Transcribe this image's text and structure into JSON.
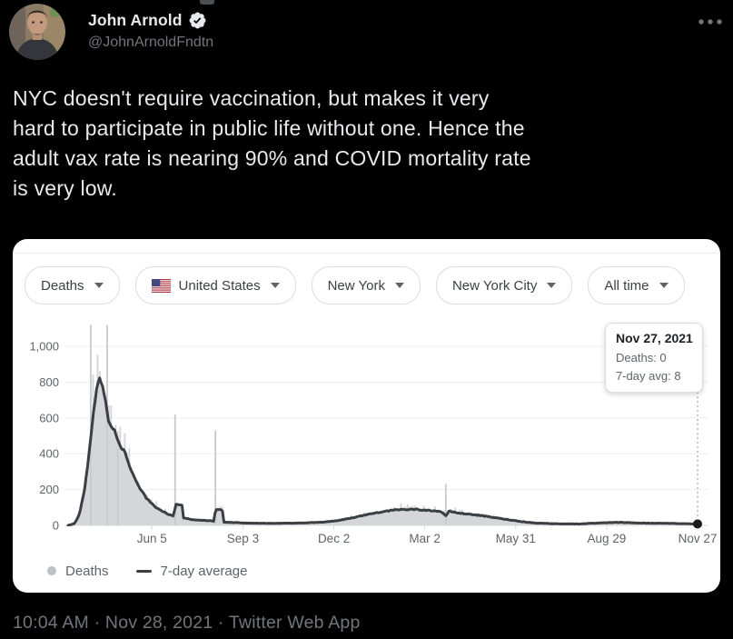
{
  "tweet": {
    "author_name": "John Arnold",
    "handle": "@JohnArnoldFndtn",
    "verified": true,
    "text_lines": [
      "NYC doesn't require vaccination, but makes it very",
      "hard to participate in public life without one. Hence the",
      "adult vax rate is nearing 90% and COVID mortality rate",
      "is very low."
    ],
    "timestamp_line": "10:04 AM · Nov 28, 2021 · Twitter Web App"
  },
  "card": {
    "filters": [
      {
        "label": "Deaths",
        "flag": false
      },
      {
        "label": "United States",
        "flag": true
      },
      {
        "label": "New York",
        "flag": false
      },
      {
        "label": "New York City",
        "flag": false
      },
      {
        "label": "All time",
        "flag": false
      }
    ],
    "tooltip": {
      "title": "Nov 27, 2021",
      "lines": [
        "Deaths: 0",
        "7-day avg: 8"
      ]
    },
    "legend": [
      {
        "label": "Deaths",
        "marker": "dot"
      },
      {
        "label": "7-day average",
        "marker": "line"
      }
    ]
  },
  "chart_data": {
    "type": "bar+line",
    "title": "",
    "xlabel": "",
    "ylabel": "",
    "x_range_dates": [
      "Mar 14, 2020",
      "Nov 27, 2021"
    ],
    "ylim": [
      0,
      1120
    ],
    "grid": true,
    "legend_position": "bottom-left",
    "y_ticks": [
      {
        "v": 0,
        "label": "0"
      },
      {
        "v": 200,
        "label": "200"
      },
      {
        "v": 400,
        "label": "400"
      },
      {
        "v": 600,
        "label": "600"
      },
      {
        "v": 800,
        "label": "800"
      },
      {
        "v": 1000,
        "label": "1,000"
      }
    ],
    "x_ticks": [
      {
        "t": 0.1332,
        "label": "Jun 5"
      },
      {
        "t": 0.2777,
        "label": "Sep 3"
      },
      {
        "t": 0.4222,
        "label": "Dec 2"
      },
      {
        "t": 0.5666,
        "label": "Mar 2"
      },
      {
        "t": 0.7111,
        "label": "May 31"
      },
      {
        "t": 0.8555,
        "label": "Aug 29"
      },
      {
        "t": 1.0,
        "label": "Nov 27"
      }
    ],
    "series": [
      {
        "name": "Deaths",
        "type": "bar",
        "color": "#d4d6d9",
        "envelope_follows": "7-day average",
        "spikes": [
          {
            "t": 0.036,
            "value": 1200
          },
          {
            "t": 0.062,
            "value": 1150
          },
          {
            "t": 0.079,
            "value": 430
          },
          {
            "t": 0.17,
            "value": 620
          },
          {
            "t": 0.234,
            "value": 530
          },
          {
            "t": 0.6,
            "value": 230
          }
        ]
      },
      {
        "name": "7-day average",
        "type": "line",
        "color": "#3a3f44",
        "points": [
          [
            0.0,
            0
          ],
          [
            0.01,
            10
          ],
          [
            0.018,
            60
          ],
          [
            0.026,
            200
          ],
          [
            0.034,
            420
          ],
          [
            0.04,
            620
          ],
          [
            0.046,
            780
          ],
          [
            0.05,
            820
          ],
          [
            0.055,
            780
          ],
          [
            0.06,
            680
          ],
          [
            0.064,
            590
          ],
          [
            0.069,
            545
          ],
          [
            0.074,
            530
          ],
          [
            0.079,
            470
          ],
          [
            0.085,
            430
          ],
          [
            0.09,
            415
          ],
          [
            0.096,
            340
          ],
          [
            0.104,
            275
          ],
          [
            0.114,
            210
          ],
          [
            0.125,
            150
          ],
          [
            0.136,
            110
          ],
          [
            0.148,
            82
          ],
          [
            0.159,
            62
          ],
          [
            0.168,
            50
          ],
          [
            0.17,
            115
          ],
          [
            0.181,
            115
          ],
          [
            0.183,
            42
          ],
          [
            0.197,
            32
          ],
          [
            0.225,
            26
          ],
          [
            0.232,
            22
          ],
          [
            0.234,
            88
          ],
          [
            0.245,
            88
          ],
          [
            0.247,
            18
          ],
          [
            0.275,
            14
          ],
          [
            0.323,
            11
          ],
          [
            0.372,
            13
          ],
          [
            0.403,
            18
          ],
          [
            0.427,
            26
          ],
          [
            0.451,
            42
          ],
          [
            0.477,
            62
          ],
          [
            0.501,
            78
          ],
          [
            0.526,
            88
          ],
          [
            0.551,
            90
          ],
          [
            0.571,
            84
          ],
          [
            0.592,
            78
          ],
          [
            0.6,
            52
          ],
          [
            0.605,
            80
          ],
          [
            0.621,
            68
          ],
          [
            0.645,
            60
          ],
          [
            0.669,
            48
          ],
          [
            0.693,
            35
          ],
          [
            0.719,
            22
          ],
          [
            0.743,
            13
          ],
          [
            0.775,
            9
          ],
          [
            0.811,
            8
          ],
          [
            0.849,
            14
          ],
          [
            0.875,
            17
          ],
          [
            0.908,
            13
          ],
          [
            0.958,
            11
          ],
          [
            1.0,
            8
          ]
        ]
      }
    ],
    "end_marker": {
      "t": 1.0,
      "value": 8,
      "date": "Nov 27, 2021",
      "deaths": 0,
      "avg": 8
    }
  },
  "colors": {
    "page_bg": "#000000",
    "tweet_text": "#e7e9ea",
    "muted_text": "#71767b",
    "card_bg": "#ffffff",
    "pill_border": "#dadce0",
    "pill_text": "#3c4043",
    "grid": "#ebedef",
    "axis_label": "#5f6368",
    "bars": "#d4d6d9",
    "avg_line": "#3a3f44"
  }
}
